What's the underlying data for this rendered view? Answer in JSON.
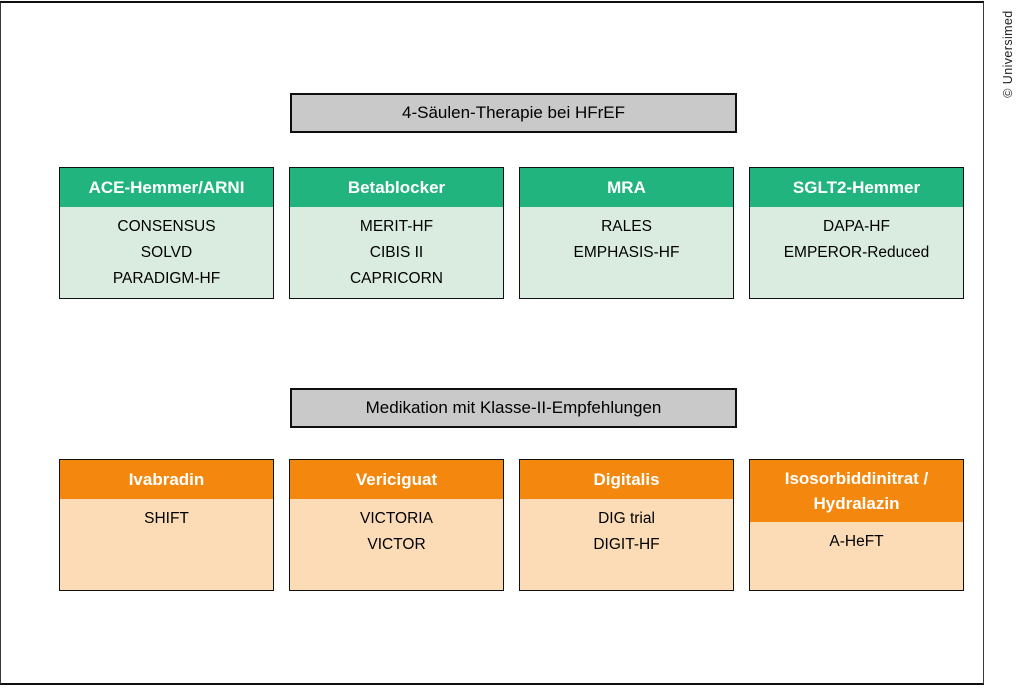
{
  "copyright": "© Universimed",
  "colors": {
    "green_header": "#21b47e",
    "green_body": "#d9ecdf",
    "orange_header": "#f4870e",
    "orange_body": "#fcdcb7",
    "title_bg": "#c9c9c9",
    "border": "#0f0f0f",
    "header_text": "#ffffff",
    "body_text": "#000000"
  },
  "sections": [
    {
      "title": "4-Säulen-Therapie bei HFrEF",
      "boxes": [
        {
          "header": "ACE-Hemmer/ARNI",
          "trials": [
            "CONSENSUS",
            "SOLVD",
            "PARADIGM-HF"
          ]
        },
        {
          "header": "Betablocker",
          "trials": [
            "MERIT-HF",
            "CIBIS II",
            "CAPRICORN"
          ]
        },
        {
          "header": "MRA",
          "trials": [
            "RALES",
            "EMPHASIS-HF"
          ]
        },
        {
          "header": "SGLT2-Hemmer",
          "trials": [
            "DAPA-HF",
            "EMPEROR-Reduced"
          ]
        }
      ]
    },
    {
      "title": "Medikation mit Klasse-II-Empfehlungen",
      "boxes": [
        {
          "header": "Ivabradin",
          "trials": [
            "SHIFT"
          ]
        },
        {
          "header": "Vericiguat",
          "trials": [
            "VICTORIA",
            "VICTOR"
          ]
        },
        {
          "header": "Digitalis",
          "trials": [
            "DIG trial",
            "DIGIT-HF"
          ]
        },
        {
          "header": "Isosorbiddinitrat / Hydralazin",
          "trials": [
            "A-HeFT"
          ]
        }
      ]
    }
  ]
}
